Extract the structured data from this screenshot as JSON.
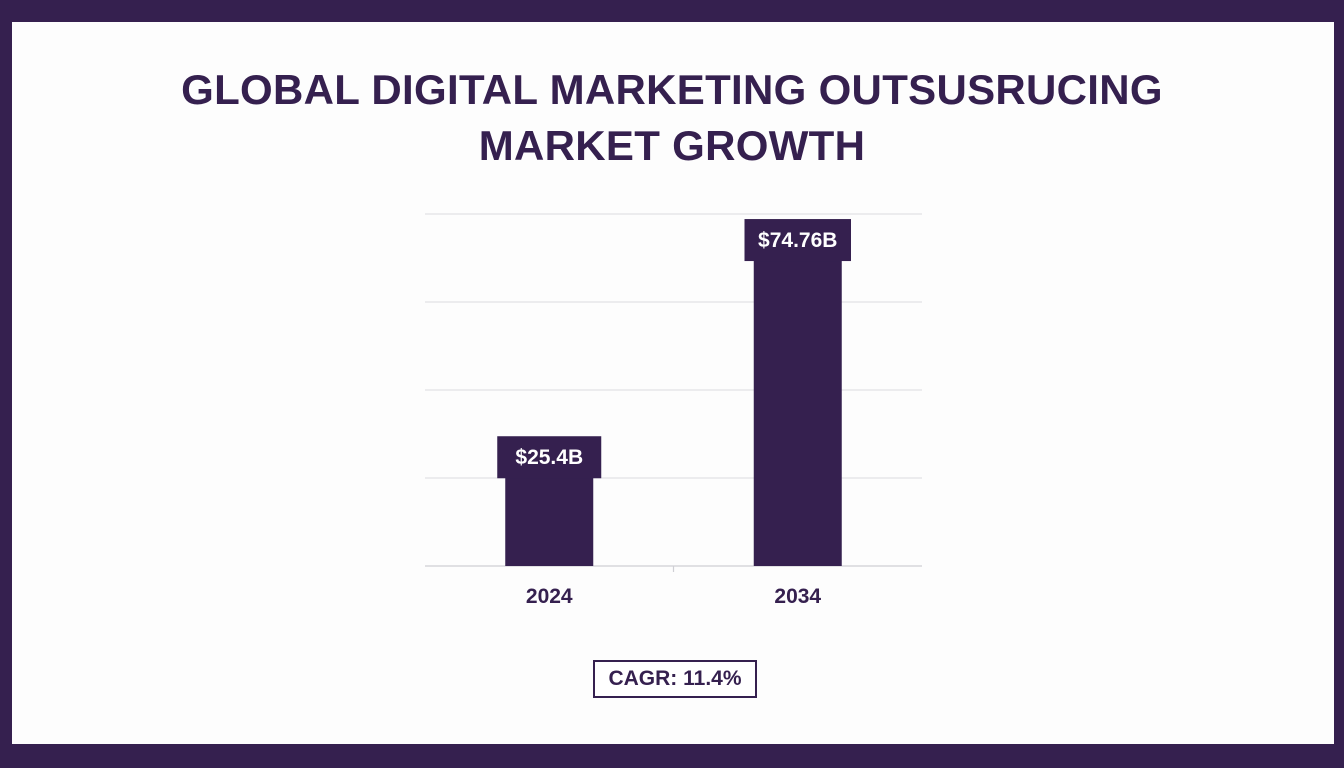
{
  "colors": {
    "frame": "#35204f",
    "background": "#fdfdfd",
    "bar": "#35204f",
    "label_text": "#ffffff",
    "grid": "#e3e3e6"
  },
  "chart_data": {
    "type": "bar",
    "title_lines": [
      "GLOBAL DIGITAL MARKETING OUTSUSRUCING",
      "MARKET GROWTH"
    ],
    "categories": [
      "2024",
      "2034"
    ],
    "values": [
      25.4,
      74.76
    ],
    "data_labels": [
      "$25.4B",
      "$74.76B"
    ],
    "unit": "USD billions",
    "xlabel": "",
    "ylabel": "",
    "ylim": [
      0,
      80
    ],
    "grid": true,
    "legend": "none",
    "annotation": "CAGR: 11.4%"
  }
}
